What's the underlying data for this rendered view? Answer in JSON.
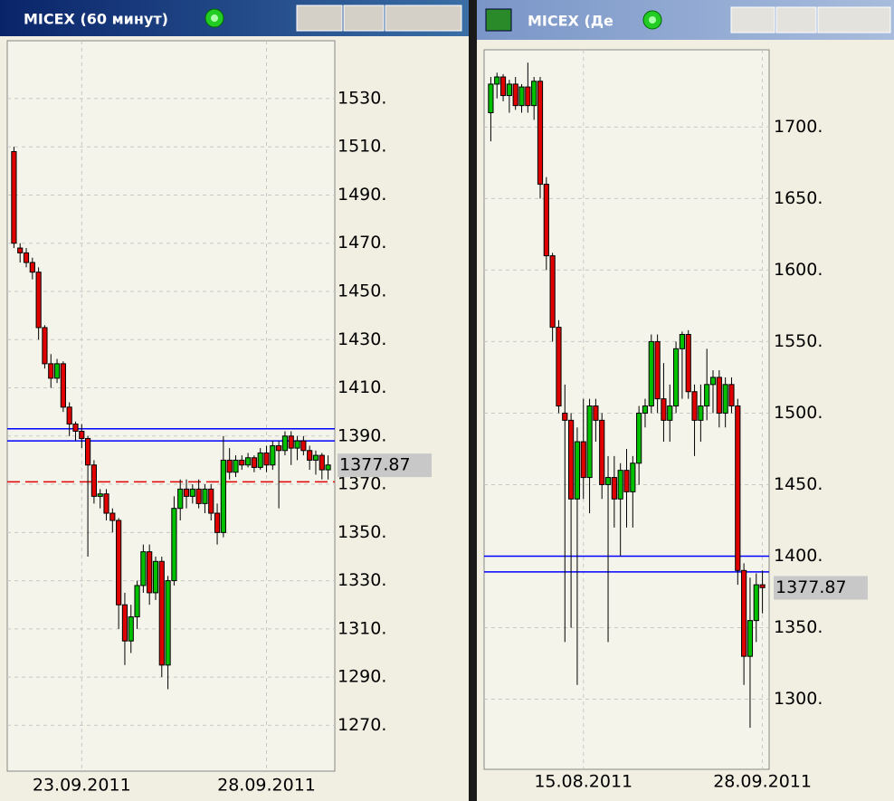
{
  "chart_data": [
    {
      "type": "candlestick",
      "title": "MICEX (60 минут)",
      "categories": [
        null,
        null,
        null,
        null,
        null,
        null,
        null,
        null,
        null,
        null,
        null,
        "23.09.2011",
        null,
        null,
        null,
        null,
        null,
        null,
        null,
        null,
        null,
        null,
        null,
        null,
        null,
        null,
        null,
        null,
        null,
        null,
        null,
        null,
        null,
        null,
        null,
        null,
        null,
        null,
        null,
        null,
        null,
        "28.09.2011",
        null,
        null,
        null,
        null,
        null,
        null,
        null,
        null,
        null,
        null
      ],
      "open": [
        1508,
        1468,
        1466,
        1462,
        1458,
        1435,
        1420,
        1414,
        1420,
        1402,
        1395,
        1392,
        1389,
        1378,
        1365,
        1366,
        1358,
        1355,
        1320,
        1305,
        1315,
        1328,
        1342,
        1325,
        1338,
        1295,
        1330,
        1360,
        1368,
        1365,
        1368,
        1362,
        1368,
        1358,
        1350,
        1380,
        1375,
        1380,
        1378,
        1381,
        1377,
        1383,
        1378,
        1386,
        1384,
        1390,
        1385,
        1388,
        1384,
        1380,
        1382,
        1376
      ],
      "high": [
        1510,
        1470,
        1468,
        1464,
        1460,
        1436,
        1424,
        1422,
        1421,
        1404,
        1396,
        1395,
        1390,
        1380,
        1368,
        1368,
        1360,
        1356,
        1325,
        1320,
        1330,
        1345,
        1345,
        1340,
        1340,
        1332,
        1365,
        1372,
        1372,
        1370,
        1372,
        1370,
        1370,
        1362,
        1390,
        1385,
        1382,
        1382,
        1383,
        1382,
        1385,
        1386,
        1388,
        1388,
        1392,
        1392,
        1390,
        1390,
        1386,
        1384,
        1383,
        1382
      ],
      "low": [
        1468,
        1462,
        1460,
        1455,
        1430,
        1418,
        1410,
        1412,
        1400,
        1390,
        1388,
        1385,
        1340,
        1362,
        1360,
        1355,
        1350,
        1310,
        1295,
        1300,
        1310,
        1325,
        1320,
        1322,
        1290,
        1285,
        1328,
        1355,
        1360,
        1362,
        1360,
        1358,
        1355,
        1345,
        1348,
        1372,
        1373,
        1376,
        1377,
        1375,
        1376,
        1375,
        1376,
        1360,
        1382,
        1378,
        1380,
        1382,
        1376,
        1374,
        1372,
        1372
      ],
      "close": [
        1470,
        1466,
        1462,
        1458,
        1435,
        1420,
        1414,
        1420,
        1402,
        1395,
        1392,
        1389,
        1378,
        1365,
        1366,
        1358,
        1355,
        1320,
        1305,
        1315,
        1328,
        1342,
        1325,
        1338,
        1295,
        1330,
        1360,
        1368,
        1365,
        1368,
        1362,
        1368,
        1358,
        1350,
        1380,
        1375,
        1380,
        1378,
        1381,
        1377,
        1383,
        1378,
        1386,
        1384,
        1390,
        1385,
        1388,
        1384,
        1380,
        1382,
        1376,
        1378
      ],
      "ylim": [
        1251,
        1554
      ],
      "yticks": [
        {
          "value": 1270,
          "label": "1270."
        },
        {
          "value": 1290,
          "label": "1290."
        },
        {
          "value": 1310,
          "label": "1310."
        },
        {
          "value": 1330,
          "label": "1330."
        },
        {
          "value": 1350,
          "label": "1350."
        },
        {
          "value": 1370,
          "label": "1370."
        },
        {
          "value": 1390,
          "label": "1390."
        },
        {
          "value": 1410,
          "label": "1410."
        },
        {
          "value": 1430,
          "label": "1430."
        },
        {
          "value": 1450,
          "label": "1450."
        },
        {
          "value": 1470,
          "label": "1470."
        },
        {
          "value": 1490,
          "label": "1490."
        },
        {
          "value": 1510,
          "label": "1510."
        },
        {
          "value": 1530,
          "label": "1530."
        }
      ],
      "lines": [
        {
          "value": 1393,
          "color": "#0000ff",
          "dashed": false
        },
        {
          "value": 1388,
          "color": "#0000ff",
          "dashed": false
        },
        {
          "value": 1371,
          "color": "#e00000",
          "dashed": true
        }
      ],
      "last_value": 1377.87,
      "up_color": "#00c000",
      "down_color": "#e00000",
      "grid": true
    },
    {
      "type": "candlestick",
      "title": "MICEX (Де",
      "categories": [
        null,
        null,
        null,
        null,
        null,
        null,
        null,
        null,
        null,
        null,
        null,
        null,
        null,
        null,
        null,
        "15.08.2011",
        null,
        null,
        null,
        null,
        null,
        null,
        null,
        null,
        null,
        null,
        null,
        null,
        null,
        null,
        null,
        null,
        null,
        null,
        null,
        null,
        null,
        null,
        null,
        null,
        null,
        null,
        null,
        null,
        "28.09.2011"
      ],
      "open": [
        1710,
        1730,
        1735,
        1722,
        1730,
        1715,
        1728,
        1715,
        1732,
        1660,
        1610,
        1560,
        1500,
        1495,
        1440,
        1480,
        1455,
        1505,
        1495,
        1450,
        1455,
        1440,
        1460,
        1445,
        1465,
        1500,
        1505,
        1550,
        1510,
        1495,
        1505,
        1545,
        1555,
        1515,
        1495,
        1505,
        1520,
        1525,
        1500,
        1520,
        1505,
        1390,
        1330,
        1355,
        1380
      ],
      "high": [
        1735,
        1738,
        1737,
        1733,
        1735,
        1730,
        1745,
        1735,
        1735,
        1665,
        1612,
        1565,
        1520,
        1500,
        1490,
        1510,
        1510,
        1510,
        1500,
        1470,
        1470,
        1465,
        1475,
        1470,
        1505,
        1510,
        1555,
        1555,
        1535,
        1520,
        1550,
        1557,
        1558,
        1520,
        1520,
        1545,
        1530,
        1530,
        1525,
        1525,
        1510,
        1395,
        1385,
        1388,
        1390
      ],
      "low": [
        1690,
        1720,
        1718,
        1710,
        1712,
        1710,
        1710,
        1705,
        1650,
        1600,
        1550,
        1500,
        1340,
        1350,
        1310,
        1440,
        1430,
        1480,
        1440,
        1340,
        1420,
        1400,
        1420,
        1420,
        1450,
        1490,
        1500,
        1500,
        1480,
        1480,
        1500,
        1510,
        1510,
        1470,
        1480,
        1495,
        1500,
        1490,
        1490,
        1500,
        1380,
        1310,
        1280,
        1340,
        1360
      ],
      "close": [
        1730,
        1735,
        1722,
        1730,
        1715,
        1728,
        1715,
        1732,
        1660,
        1610,
        1560,
        1505,
        1495,
        1440,
        1480,
        1455,
        1505,
        1495,
        1450,
        1455,
        1440,
        1460,
        1445,
        1465,
        1500,
        1505,
        1550,
        1510,
        1495,
        1505,
        1545,
        1555,
        1515,
        1495,
        1505,
        1520,
        1525,
        1500,
        1520,
        1505,
        1390,
        1330,
        1355,
        1380,
        1378
      ],
      "ylim": [
        1251,
        1754
      ],
      "yticks": [
        {
          "value": 1300,
          "label": "1300."
        },
        {
          "value": 1350,
          "label": "1350."
        },
        {
          "value": 1400,
          "label": "1400."
        },
        {
          "value": 1450,
          "label": "1450."
        },
        {
          "value": 1500,
          "label": "1500."
        },
        {
          "value": 1550,
          "label": "1550."
        },
        {
          "value": 1600,
          "label": "1600."
        },
        {
          "value": 1650,
          "label": "1650."
        },
        {
          "value": 1700,
          "label": "1700."
        }
      ],
      "lines": [
        {
          "value": 1400,
          "color": "#0000ff",
          "dashed": false
        },
        {
          "value": 1389,
          "color": "#0000ff",
          "dashed": false
        }
      ],
      "last_value": 1377.87,
      "up_color": "#00c000",
      "down_color": "#e00000",
      "grid": true
    }
  ]
}
